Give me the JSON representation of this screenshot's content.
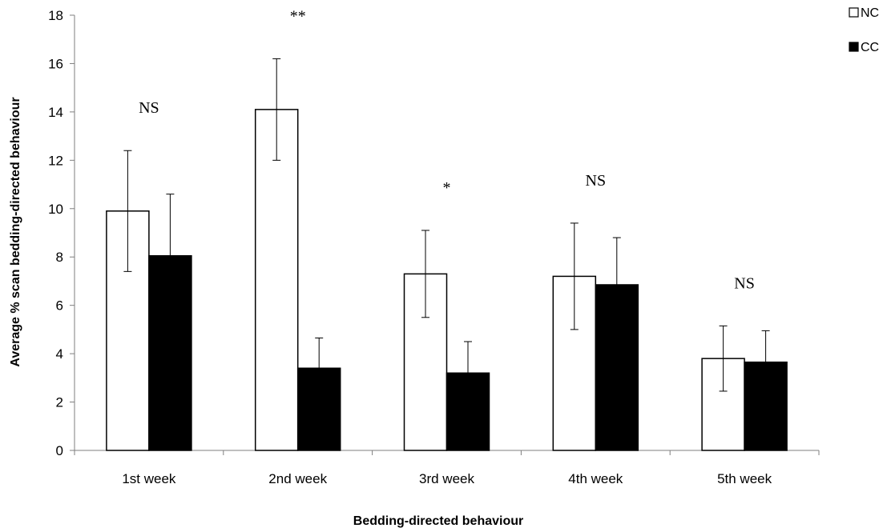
{
  "chart_data": {
    "type": "bar",
    "categories": [
      "1st week",
      "2nd week",
      "3rd week",
      "4th week",
      "5th week"
    ],
    "series": [
      {
        "name": "NC",
        "values": [
          9.9,
          14.1,
          7.3,
          7.2,
          3.8
        ],
        "errors": [
          2.5,
          2.1,
          1.8,
          2.2,
          1.35
        ],
        "color": "#ffffff"
      },
      {
        "name": "CC",
        "values": [
          8.05,
          3.4,
          3.2,
          6.85,
          3.65
        ],
        "errors": [
          2.55,
          1.25,
          1.3,
          1.95,
          1.3
        ],
        "color": "#000000"
      }
    ],
    "significance": [
      "NS",
      "**",
      "*",
      "NS",
      "NS"
    ],
    "xlabel": "Bedding-directed behaviour",
    "ylabel": "Average % scan bedding-directed behaviour",
    "ylim": [
      0,
      18
    ],
    "yticks": [
      0,
      2,
      4,
      6,
      8,
      10,
      12,
      14,
      16,
      18
    ],
    "grid": false,
    "legend_position": "top-right"
  }
}
